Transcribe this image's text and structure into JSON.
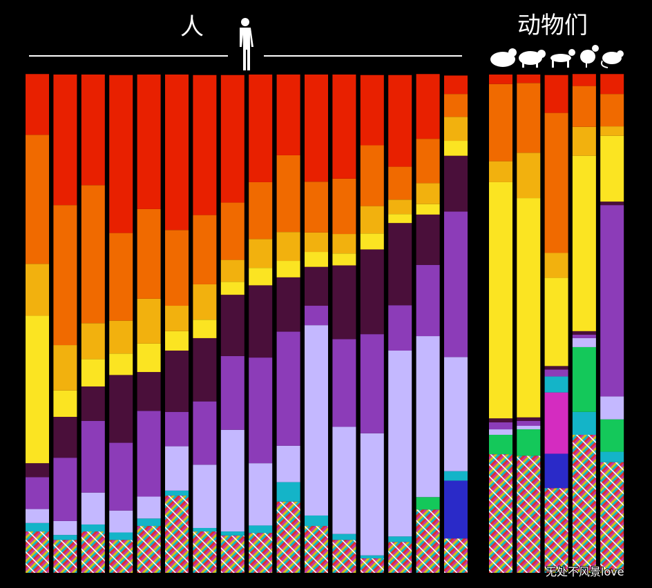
{
  "chart_data": {
    "type": "bar",
    "stacked": true,
    "annotations": [
      "人",
      "动物们",
      "无处不风景love"
    ],
    "categories": [
      null,
      null,
      null,
      null,
      null,
      null,
      null,
      null,
      null,
      null,
      null,
      null,
      null,
      null,
      null,
      null,
      null,
      null,
      null,
      null,
      null
    ],
    "ylim": [
      0,
      100
    ],
    "series": [
      {
        "color": "#c23aa6",
        "hatched": true,
        "values": [
          8.3,
          6.6,
          8.3,
          6.6,
          9.4,
          15.5,
          8.3,
          7.5,
          8.0,
          14.3,
          9.4,
          6.6,
          2.9,
          6.2,
          12.7,
          6.9,
          23.8,
          23.5,
          17.0,
          27.7,
          22.2
        ]
      },
      {
        "color": "#2a2ac8",
        "values": [
          0,
          0,
          0,
          0,
          0,
          0,
          0,
          0,
          0,
          0,
          0,
          0,
          0,
          0,
          0,
          11.6,
          0,
          0,
          6.9,
          0,
          0
        ]
      },
      {
        "color": "#d42cc0",
        "values": [
          0,
          0,
          0,
          0,
          0,
          0,
          0,
          0,
          0,
          0,
          0,
          0,
          0,
          0,
          0,
          0,
          0,
          0,
          12.3,
          0,
          0
        ]
      },
      {
        "color": "#14b4c8",
        "values": [
          1.7,
          1.0,
          1.4,
          1.5,
          1.5,
          1.0,
          0.7,
          0.8,
          1.5,
          3.9,
          2.1,
          1.2,
          0.6,
          1.1,
          0,
          1.9,
          0,
          0,
          3.2,
          4.6,
          2.1
        ]
      },
      {
        "color": "#14c85a",
        "values": [
          0,
          0,
          0,
          0,
          0,
          0,
          0,
          0,
          0,
          0,
          0,
          0,
          0,
          0,
          2.5,
          0,
          3.9,
          5.3,
          0,
          13.0,
          6.5
        ]
      },
      {
        "color": "#c4b8ff",
        "values": [
          2.8,
          2.8,
          6.4,
          4.4,
          4.4,
          8.9,
          12.7,
          20.4,
          12.5,
          7.3,
          38.2,
          21.5,
          24.5,
          37.3,
          32.3,
          22.9,
          1.1,
          0.7,
          0,
          1.8,
          4.6
        ]
      },
      {
        "color": "#8c3cb8",
        "values": [
          6.4,
          12.7,
          14.4,
          13.6,
          17.2,
          6.9,
          12.7,
          14.8,
          21.2,
          22.9,
          3.9,
          17.6,
          19.9,
          9.1,
          14.3,
          29.2,
          1.4,
          1.0,
          1.4,
          0.7,
          38.4
        ]
      },
      {
        "color": "#4a0f3a",
        "values": [
          2.8,
          8.2,
          6.9,
          13.6,
          7.8,
          12.3,
          12.7,
          12.3,
          14.5,
          10.9,
          7.8,
          14.8,
          17.0,
          16.5,
          10.1,
          11.2,
          0.8,
          0.7,
          0.7,
          0.7,
          0.7
        ]
      },
      {
        "color": "#fbe422",
        "values": [
          29.6,
          5.3,
          5.5,
          4.3,
          5.7,
          3.9,
          3.7,
          2.6,
          3.5,
          3.3,
          3.0,
          2.4,
          3.2,
          1.8,
          2.1,
          3.0,
          47.4,
          44.0,
          17.7,
          35.2,
          13.2
        ]
      },
      {
        "color": "#f2b10e",
        "values": [
          10.4,
          9.1,
          7.2,
          6.6,
          9.0,
          5.1,
          7.1,
          4.4,
          5.8,
          5.8,
          3.9,
          3.9,
          5.5,
          2.9,
          4.2,
          4.8,
          4.2,
          9.1,
          5.0,
          5.8,
          1.9
        ]
      },
      {
        "color": "#f06a00",
        "values": [
          25.9,
          28.1,
          27.7,
          17.6,
          18.0,
          15.2,
          13.9,
          11.5,
          11.4,
          15.4,
          10.2,
          11.1,
          12.2,
          6.6,
          8.9,
          4.6,
          15.5,
          14.0,
          28.1,
          8.2,
          6.5
        ]
      },
      {
        "color": "#e82000",
        "values": [
          12.2,
          26.2,
          22.2,
          31.7,
          27.0,
          31.2,
          28.1,
          25.6,
          21.6,
          16.2,
          21.5,
          20.9,
          14.1,
          18.4,
          13.0,
          3.7,
          1.9,
          1.7,
          7.6,
          2.4,
          4.0
        ]
      }
    ]
  }
}
